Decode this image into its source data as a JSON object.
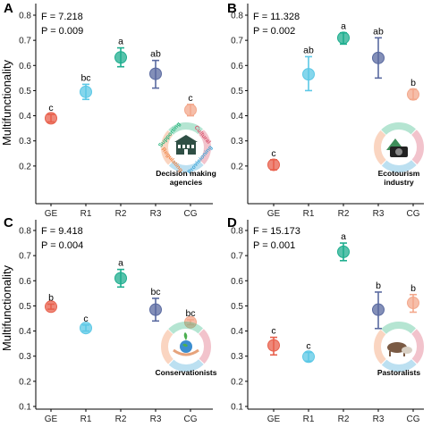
{
  "figure": {
    "y_axis_label": "Multifunctionality",
    "colors": {
      "GE": "#e8604c",
      "R1": "#5cc8e6",
      "R2": "#1fae8f",
      "R3": "#5a6aa0",
      "CG": "#f3a88c",
      "ring_supporting": "#2bb57f",
      "ring_cultural": "#d9546e",
      "ring_regulating": "#f0884c",
      "ring_provisioning": "#3fa6d8"
    }
  },
  "chart_data": [
    {
      "type": "scatter",
      "panel": "A",
      "stat_f": "F = 7.218",
      "stat_p": "P = 0.009",
      "categories": [
        "GE",
        "R1",
        "R2",
        "R3",
        "CG"
      ],
      "values": [
        0.39,
        0.495,
        0.632,
        0.567,
        0.423
      ],
      "lower": [
        0.375,
        0.465,
        0.595,
        0.51,
        0.4
      ],
      "upper": [
        0.405,
        0.525,
        0.67,
        0.62,
        0.445
      ],
      "letters": [
        "c",
        "bc",
        "a",
        "ab",
        "c"
      ],
      "ylim": [
        0.1,
        0.8
      ],
      "yticks": [
        "0.2",
        "0.3",
        "0.4",
        "0.5",
        "0.6",
        "0.7",
        "0.8"
      ],
      "inset_label": [
        "Decision making",
        "agencies"
      ],
      "ring_words": [
        "Supporting",
        "Cultural",
        "Regulating",
        "Provisioning"
      ]
    },
    {
      "type": "scatter",
      "panel": "B",
      "stat_f": "F = 11.328",
      "stat_p": "P = 0.002",
      "categories": [
        "GE",
        "R1",
        "R2",
        "R3",
        "CG"
      ],
      "values": [
        0.205,
        0.565,
        0.71,
        0.63,
        0.485
      ],
      "lower": [
        0.185,
        0.5,
        0.685,
        0.55,
        0.465
      ],
      "upper": [
        0.225,
        0.635,
        0.73,
        0.71,
        0.505
      ],
      "letters": [
        "c",
        "ab",
        "a",
        "ab",
        "b"
      ],
      "ylim": [
        0.1,
        0.8
      ],
      "yticks": [
        "0.2",
        "0.3",
        "0.4",
        "0.5",
        "0.6",
        "0.7",
        "0.8"
      ],
      "inset_label": [
        "Ecotourism",
        "industry"
      ]
    },
    {
      "type": "scatter",
      "panel": "C",
      "stat_f": "F = 9.418",
      "stat_p": "P = 0.004",
      "categories": [
        "GE",
        "R1",
        "R2",
        "R3",
        "CG"
      ],
      "values": [
        0.497,
        0.412,
        0.61,
        0.485,
        0.435
      ],
      "lower": [
        0.487,
        0.4,
        0.575,
        0.44,
        0.425
      ],
      "upper": [
        0.507,
        0.424,
        0.645,
        0.53,
        0.445
      ],
      "letters": [
        "b",
        "c",
        "a",
        "bc",
        "bc"
      ],
      "ylim": [
        0.1,
        0.8
      ],
      "yticks": [
        "0.1",
        "0.2",
        "0.3",
        "0.4",
        "0.5",
        "0.6",
        "0.7",
        "0.8"
      ],
      "inset_label": [
        "Conservationists"
      ]
    },
    {
      "type": "scatter",
      "panel": "D",
      "stat_f": "F = 15.173",
      "stat_p": "P = 0.001",
      "categories": [
        "GE",
        "R1",
        "R2",
        "R3",
        "CG"
      ],
      "values": [
        0.343,
        0.298,
        0.715,
        0.485,
        0.512
      ],
      "lower": [
        0.305,
        0.28,
        0.68,
        0.41,
        0.475
      ],
      "upper": [
        0.375,
        0.315,
        0.75,
        0.555,
        0.545
      ],
      "letters": [
        "c",
        "c",
        "a",
        "b",
        "b"
      ],
      "ylim": [
        0.1,
        0.8
      ],
      "yticks": [
        "0.1",
        "0.2",
        "0.3",
        "0.4",
        "0.5",
        "0.6",
        "0.7",
        "0.8"
      ],
      "inset_label": [
        "Pastoralists"
      ]
    }
  ]
}
